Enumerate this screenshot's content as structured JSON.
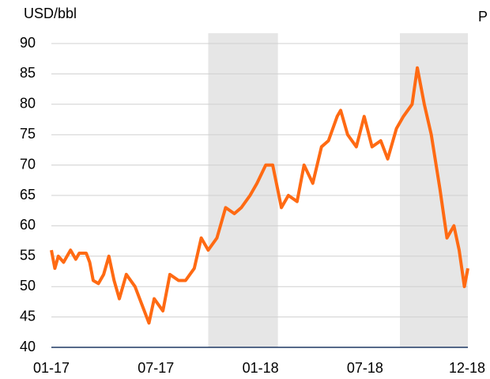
{
  "chart_data": {
    "type": "line",
    "y_label": "USD/bbl",
    "corner_text": "P",
    "xlim": [
      0,
      23.9
    ],
    "xticks": [
      {
        "value": 0,
        "label": "01-17"
      },
      {
        "value": 6,
        "label": "07-17"
      },
      {
        "value": 12,
        "label": "01-18"
      },
      {
        "value": 18,
        "label": "07-18"
      },
      {
        "value": 23.9,
        "label": "12-18"
      }
    ],
    "ylim": [
      40,
      90
    ],
    "yticks": [
      40,
      45,
      50,
      55,
      60,
      65,
      70,
      75,
      80,
      85,
      90
    ],
    "grid": true,
    "shaded_ranges": [
      [
        9,
        13
      ],
      [
        20,
        23.9
      ]
    ],
    "shade_color": "#e6e6e6",
    "series": [
      {
        "color": "#ff6a13",
        "x": [
          0,
          0.2,
          0.4,
          0.7,
          0.9,
          1.1,
          1.4,
          1.6,
          2,
          2.2,
          2.4,
          2.7,
          3,
          3.3,
          3.6,
          3.9,
          4.3,
          4.8,
          5.2,
          5.6,
          5.9,
          6.4,
          6.8,
          7.3,
          7.7,
          8.2,
          8.6,
          9,
          9.5,
          10,
          10.5,
          10.9,
          11.4,
          11.8,
          12.3,
          12.7,
          13.2,
          13.6,
          14.1,
          14.5,
          15,
          15.5,
          15.9,
          16.4,
          16.6,
          17,
          17.5,
          17.95,
          18.4,
          18.9,
          19.3,
          19.8,
          20.2,
          20.7,
          21,
          21.4,
          21.8,
          22.3,
          22.7,
          23.1,
          23.4,
          23.7,
          23.9
        ],
        "values": [
          56,
          53,
          55,
          54,
          55,
          56,
          54.5,
          55.5,
          55.5,
          54,
          51,
          50.5,
          52,
          55,
          51,
          48,
          52,
          50,
          47,
          44,
          48,
          46,
          52,
          51,
          51,
          53,
          58,
          56,
          58,
          63,
          62,
          63,
          65,
          67,
          70,
          70,
          63,
          65,
          64,
          70,
          67,
          73,
          74,
          78,
          79,
          75,
          73,
          78,
          73,
          74,
          71,
          76,
          78,
          80,
          86,
          80,
          75,
          66,
          58,
          60,
          56,
          50,
          53
        ]
      }
    ]
  }
}
